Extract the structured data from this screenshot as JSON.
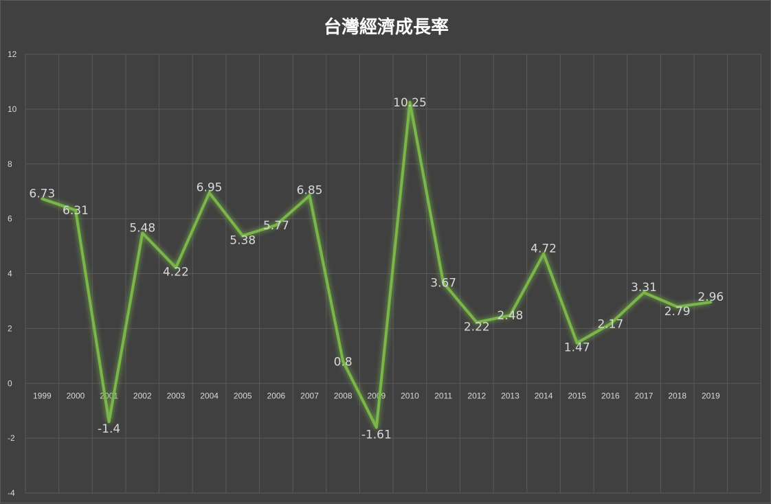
{
  "chart_data": {
    "type": "line",
    "title": "台灣經濟成長率",
    "xlabel": "",
    "ylabel": "",
    "categories": [
      "1999",
      "2000",
      "2001",
      "2002",
      "2003",
      "2004",
      "2005",
      "2006",
      "2007",
      "2008",
      "2009",
      "2010",
      "2011",
      "2012",
      "2013",
      "2014",
      "2015",
      "2016",
      "2017",
      "2018",
      "2019"
    ],
    "series": [
      {
        "values": [
          6.73,
          6.31,
          -1.4,
          5.48,
          4.22,
          6.95,
          5.38,
          5.77,
          6.85,
          0.8,
          -1.61,
          10.25,
          3.67,
          2.22,
          2.48,
          4.72,
          1.47,
          2.17,
          3.31,
          2.79,
          2.96
        ],
        "labels": [
          "6.73",
          "6.31",
          "-1.4",
          "5.48",
          "4.22",
          "6.95",
          "5.38",
          "5.77",
          "6.85",
          "0.8",
          "-1.61",
          "10.25",
          "3.67",
          "2.22",
          "2.48",
          "4.72",
          "1.47",
          "2.17",
          "3.31",
          "2.79",
          "2.96"
        ],
        "color": "#7ab648"
      }
    ],
    "ylim": [
      -4,
      12
    ],
    "yticks": [
      "-4",
      "-2",
      "0",
      "2",
      "4",
      "6",
      "8",
      "10",
      "12"
    ],
    "grid": true,
    "legend": "none",
    "background": "#404040",
    "gridColor": "#5a5a5a",
    "textColor": "#d9d9d9"
  }
}
